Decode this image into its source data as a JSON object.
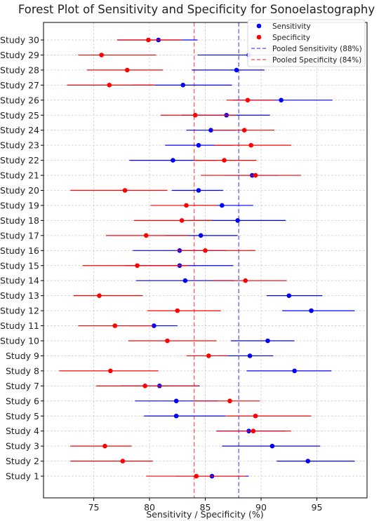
{
  "chart_data": {
    "type": "forest",
    "title": "Forest Plot of Sensitivity and Specificity for Sonoelastography",
    "xlabel": "Sensitivity / Specificity (%)",
    "ylabel": "",
    "xlim": [
      70.5,
      99.5
    ],
    "xticks": [
      75,
      80,
      85,
      90,
      95
    ],
    "grid": true,
    "legend_position": "top-right",
    "categories": [
      "Study 1",
      "Study 2",
      "Study 3",
      "Study 4",
      "Study 5",
      "Study 6",
      "Study 7",
      "Study 8",
      "Study 9",
      "Study 10",
      "Study 11",
      "Study 12",
      "Study 13",
      "Study 14",
      "Study 15",
      "Study 16",
      "Study 17",
      "Study 18",
      "Study 19",
      "Study 20",
      "Study 21",
      "Study 22",
      "Study 23",
      "Study 24",
      "Study 25",
      "Study 26",
      "Study 27",
      "Study 28",
      "Study 29",
      "Study 30"
    ],
    "series": [
      {
        "name": "Sensitivity",
        "color": "#0000ff",
        "values": [
          85.6,
          94.2,
          91.0,
          88.9,
          82.4,
          82.4,
          80.9,
          93.0,
          89.0,
          90.6,
          80.4,
          94.5,
          92.5,
          83.2,
          82.7,
          82.7,
          84.6,
          87.9,
          86.5,
          84.4,
          89.2,
          82.1,
          84.4,
          85.5,
          86.9,
          91.8,
          83.0,
          87.8,
          88.9,
          80.8
        ],
        "lower": [
          82.3,
          91.4,
          86.5,
          86.0,
          79.5,
          78.7,
          77.4,
          88.7,
          86.1,
          87.3,
          78.2,
          91.9,
          90.5,
          78.8,
          77.8,
          78.5,
          81.4,
          83.6,
          83.7,
          82.0,
          86.8,
          78.2,
          81.4,
          83.3,
          82.9,
          87.5,
          78.5,
          83.8,
          84.3,
          77.1
        ],
        "upper": [
          88.9,
          98.4,
          95.3,
          92.2,
          86.8,
          86.1,
          84.5,
          96.3,
          91.1,
          93.0,
          82.5,
          98.4,
          95.5,
          87.6,
          87.5,
          86.9,
          87.9,
          92.2,
          89.3,
          86.6,
          91.6,
          86.0,
          87.5,
          87.7,
          90.8,
          96.4,
          87.4,
          90.3,
          93.5,
          84.3
        ]
      },
      {
        "name": "Specificity",
        "color": "#ff0000",
        "values": [
          84.2,
          77.6,
          76.0,
          89.3,
          89.5,
          87.2,
          79.6,
          76.5,
          85.3,
          81.6,
          76.9,
          82.5,
          75.5,
          88.6,
          78.9,
          85.0,
          79.7,
          82.9,
          83.3,
          77.8,
          89.5,
          86.7,
          89.1,
          88.5,
          84.1,
          88.8,
          76.4,
          78.0,
          75.7,
          79.9
        ],
        "lower": [
          79.7,
          72.9,
          72.9,
          86.0,
          86.8,
          84.0,
          75.2,
          71.9,
          83.3,
          78.1,
          73.6,
          79.8,
          73.2,
          85.6,
          74.0,
          82.4,
          76.1,
          78.6,
          80.1,
          72.9,
          84.6,
          84.0,
          85.8,
          85.6,
          81.0,
          86.9,
          72.6,
          74.4,
          73.6,
          77.1
        ],
        "upper": [
          88.6,
          80.3,
          78.4,
          92.7,
          94.5,
          89.9,
          84.4,
          80.8,
          87.0,
          86.0,
          80.3,
          86.4,
          79.4,
          92.3,
          83.5,
          89.5,
          83.5,
          85.6,
          86.0,
          81.6,
          93.6,
          89.6,
          92.7,
          91.2,
          87.7,
          91.2,
          80.5,
          81.2,
          80.6,
          82.9
        ]
      }
    ],
    "reference_lines": [
      {
        "name": "Pooled Sensitivity (88%)",
        "x": 88,
        "color": "#6b6bef"
      },
      {
        "name": "Pooled Specificity (84%)",
        "x": 84,
        "color": "#ef6b6b"
      }
    ]
  }
}
